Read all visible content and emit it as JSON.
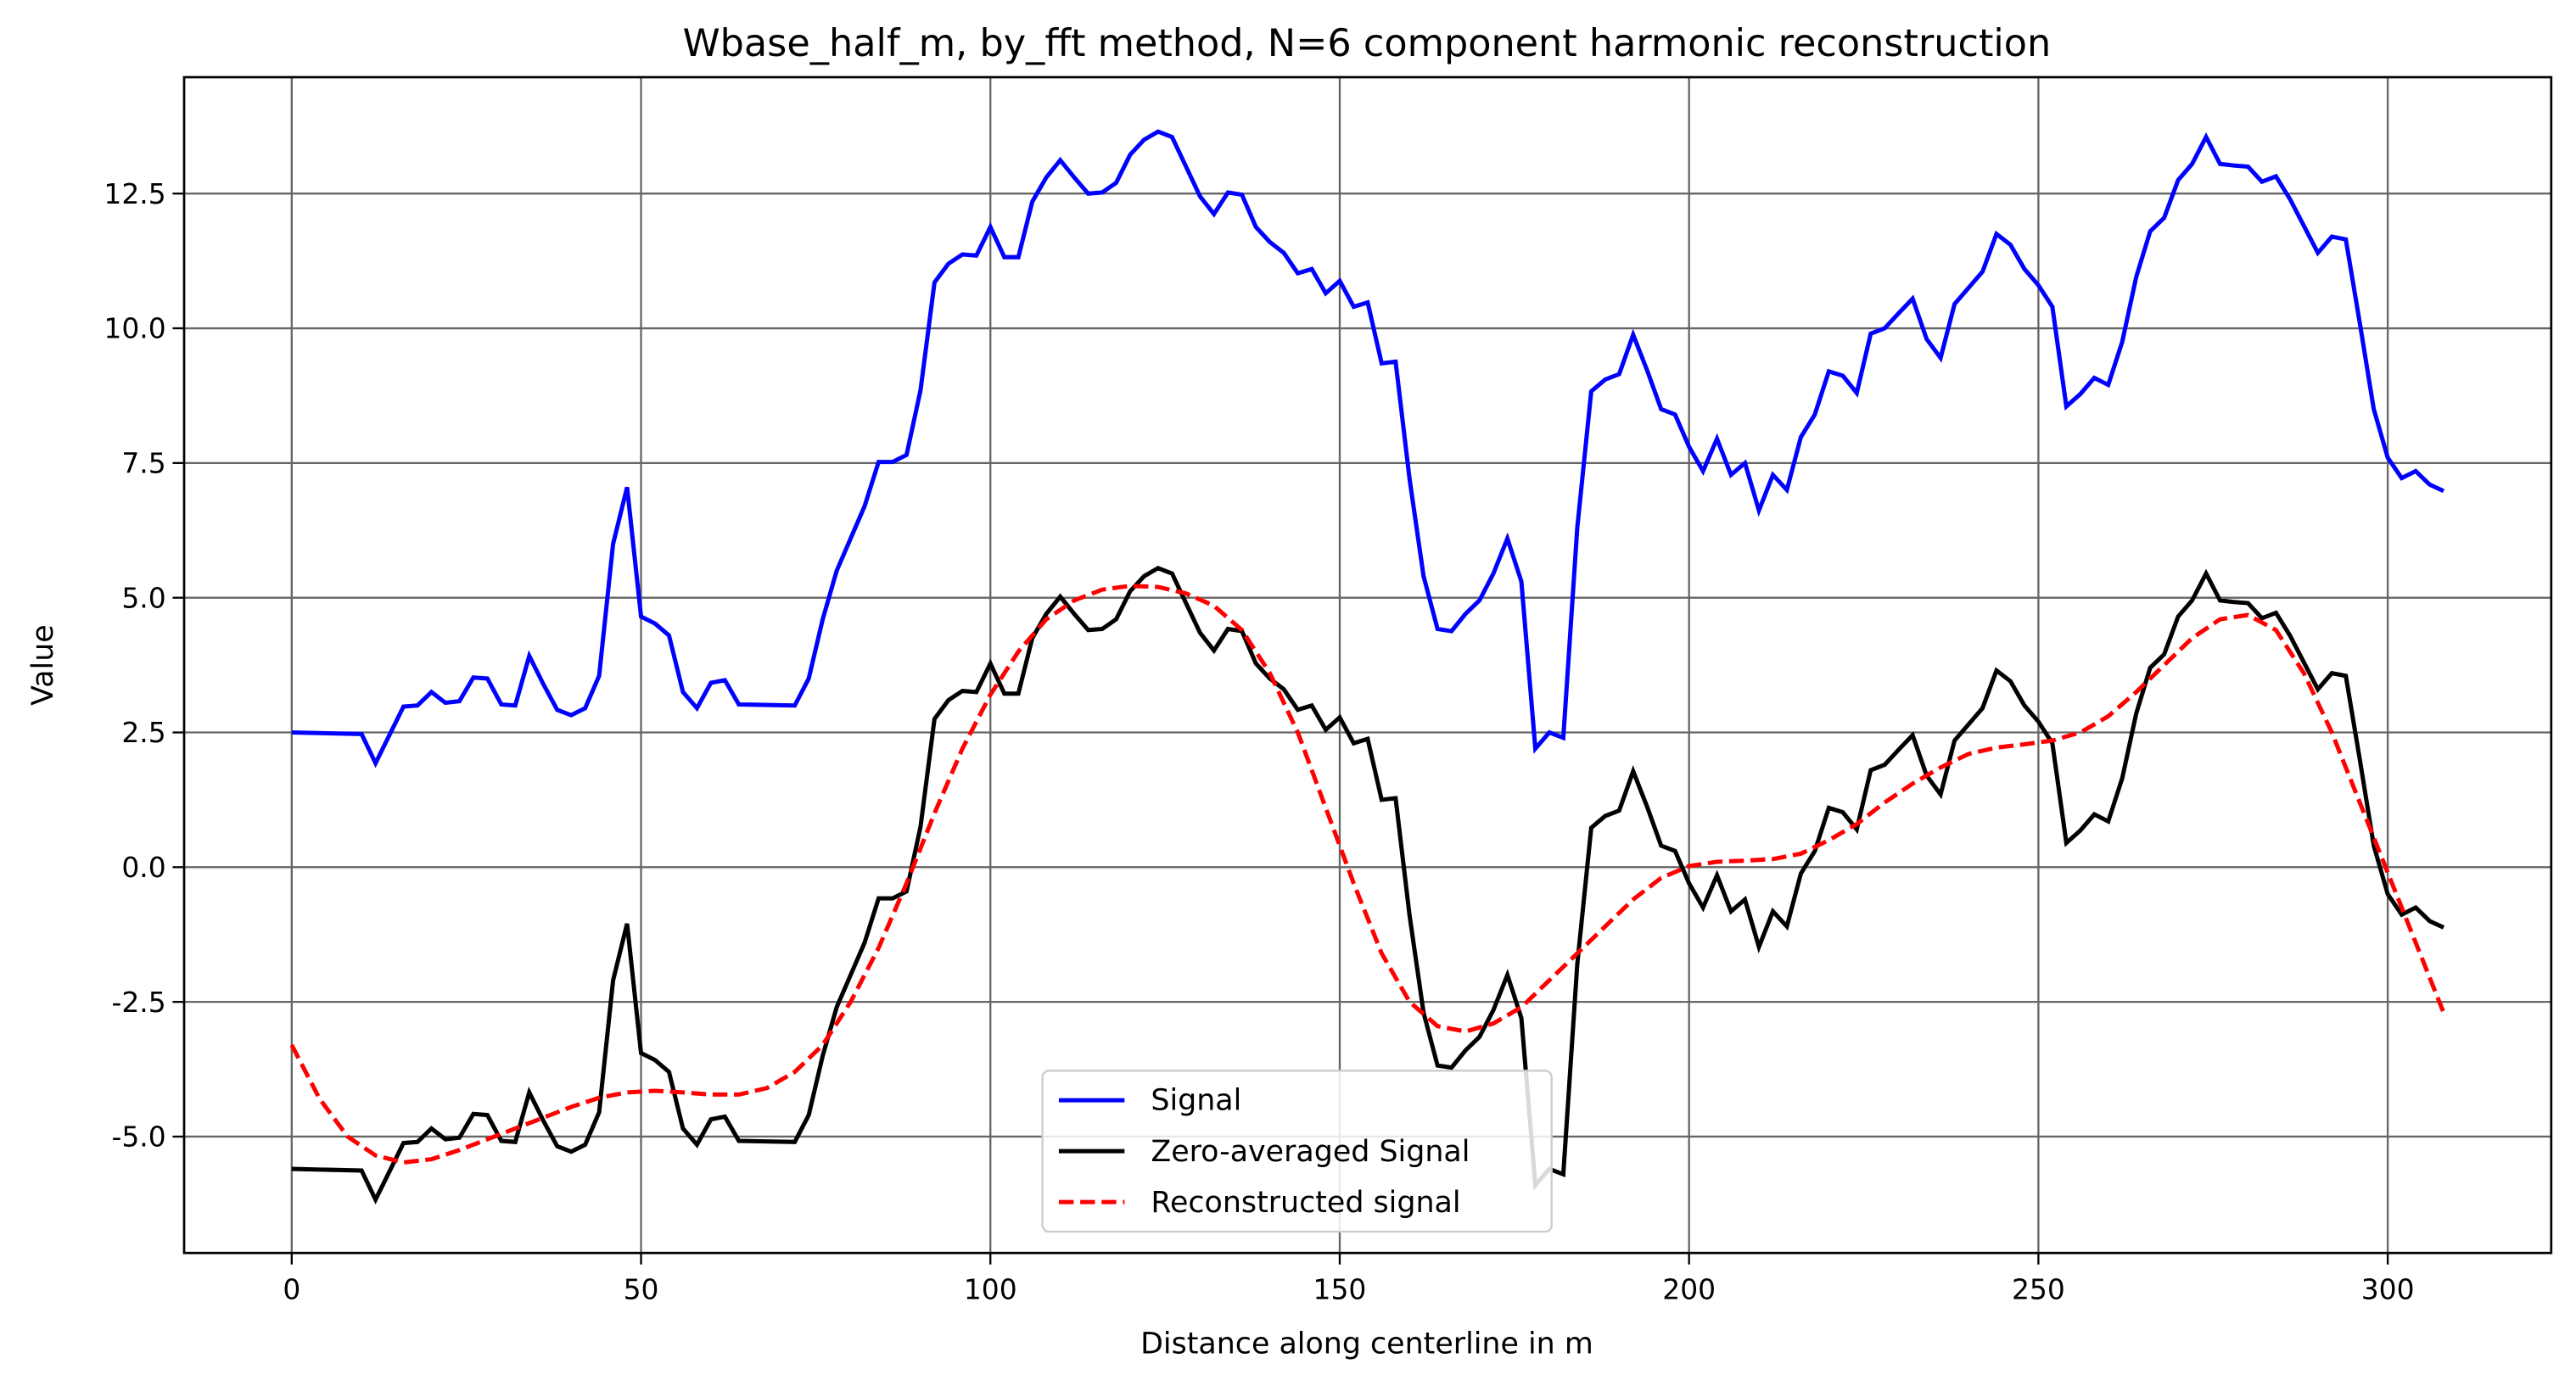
{
  "chart_data": {
    "type": "line",
    "title": "Wbase_half_m, by_fft method, N=6 component harmonic reconstruction",
    "xlabel": "Distance along centerline in m",
    "ylabel": "Value",
    "xlim": [
      -15.4,
      323.4
    ],
    "ylim": [
      -7.16,
      14.66
    ],
    "xticks": [
      0,
      50,
      100,
      150,
      200,
      250,
      300
    ],
    "yticks": [
      {
        "value": -5,
        "label": "-5.0"
      },
      -2.5,
      {
        "value": 0,
        "label": "0.0"
      },
      2.5,
      {
        "value": 5,
        "label": "5.0"
      },
      7.5,
      {
        "value": 10,
        "label": "10.0"
      },
      12.5
    ],
    "grid": true,
    "legend": "lower center",
    "series": [
      {
        "name": "Signal",
        "color": "#0000ff",
        "dash": "solid",
        "x": [
          0,
          10,
          12,
          16,
          18,
          20,
          22,
          24,
          26,
          28,
          30,
          32,
          34,
          36,
          38,
          40,
          42,
          44,
          46,
          48,
          50,
          52,
          54,
          56,
          58,
          60,
          62,
          64,
          72,
          74,
          76,
          78,
          80,
          82,
          84,
          86,
          88,
          90,
          92,
          94,
          96,
          98,
          100,
          102,
          104,
          106,
          108,
          110,
          112,
          114,
          116,
          118,
          120,
          122,
          124,
          126,
          128,
          130,
          132,
          134,
          136,
          138,
          140,
          142,
          144,
          146,
          148,
          150,
          152,
          154,
          156,
          158,
          160,
          162,
          164,
          166,
          168,
          170,
          172,
          174,
          176,
          178,
          180,
          182,
          184,
          186,
          188,
          190,
          192,
          194,
          196,
          198,
          200,
          202,
          204,
          206,
          208,
          210,
          212,
          214,
          216,
          218,
          220,
          222,
          224,
          226,
          228,
          230,
          232,
          234,
          236,
          238,
          240,
          242,
          244,
          246,
          248,
          250,
          252,
          254,
          256,
          258,
          260,
          262,
          264,
          266,
          268,
          270,
          272,
          274,
          276,
          278,
          280,
          282,
          284,
          286,
          288,
          290,
          292,
          294,
          296,
          298,
          300,
          302,
          304,
          306,
          308
        ],
        "values": [
          2.5,
          2.47,
          1.93,
          2.98,
          3.0,
          3.25,
          3.05,
          3.08,
          3.52,
          3.5,
          3.02,
          3.0,
          3.92,
          3.4,
          2.92,
          2.82,
          2.95,
          3.55,
          6.0,
          7.05,
          4.65,
          4.52,
          4.3,
          3.25,
          2.95,
          3.42,
          3.47,
          3.02,
          3.0,
          3.5,
          4.6,
          5.5,
          6.1,
          6.7,
          7.52,
          7.52,
          7.65,
          8.85,
          10.85,
          11.2,
          11.37,
          11.35,
          11.88,
          11.32,
          11.32,
          12.35,
          12.8,
          13.12,
          12.8,
          12.5,
          12.52,
          12.7,
          13.22,
          13.5,
          13.65,
          13.55,
          13.0,
          12.45,
          12.12,
          12.52,
          12.48,
          11.88,
          11.6,
          11.4,
          11.02,
          11.1,
          10.65,
          10.88,
          10.4,
          10.48,
          9.35,
          9.38,
          7.2,
          5.4,
          4.42,
          4.38,
          4.7,
          4.95,
          5.45,
          6.1,
          5.3,
          2.2,
          2.5,
          2.4,
          6.3,
          8.83,
          9.05,
          9.15,
          9.88,
          9.22,
          8.5,
          8.4,
          7.8,
          7.35,
          7.95,
          7.28,
          7.5,
          6.62,
          7.28,
          7.0,
          7.98,
          8.4,
          9.2,
          9.12,
          8.8,
          9.9,
          10.0,
          10.28,
          10.55,
          9.8,
          9.45,
          10.45,
          10.75,
          11.05,
          11.75,
          11.55,
          11.1,
          10.8,
          10.4,
          8.55,
          8.78,
          9.08,
          8.95,
          9.75,
          10.95,
          11.8,
          12.05,
          12.75,
          13.05,
          13.55,
          13.05,
          13.02,
          13.0,
          12.72,
          12.82,
          12.4,
          11.9,
          11.4,
          11.7,
          11.65,
          10.1,
          8.5,
          7.6,
          7.22,
          7.35,
          7.1,
          6.98
        ]
      },
      {
        "name": "Zero-averaged Signal",
        "color": "#000000",
        "dash": "solid",
        "x": [
          0,
          10,
          12,
          16,
          18,
          20,
          22,
          24,
          26,
          28,
          30,
          32,
          34,
          36,
          38,
          40,
          42,
          44,
          46,
          48,
          50,
          52,
          54,
          56,
          58,
          60,
          62,
          64,
          72,
          74,
          76,
          78,
          80,
          82,
          84,
          86,
          88,
          90,
          92,
          94,
          96,
          98,
          100,
          102,
          104,
          106,
          108,
          110,
          112,
          114,
          116,
          118,
          120,
          122,
          124,
          126,
          128,
          130,
          132,
          134,
          136,
          138,
          140,
          142,
          144,
          146,
          148,
          150,
          152,
          154,
          156,
          158,
          160,
          162,
          164,
          166,
          168,
          170,
          172,
          174,
          176,
          178,
          180,
          182,
          184,
          186,
          188,
          190,
          192,
          194,
          196,
          198,
          200,
          202,
          204,
          206,
          208,
          210,
          212,
          214,
          216,
          218,
          220,
          222,
          224,
          226,
          228,
          230,
          232,
          234,
          236,
          238,
          240,
          242,
          244,
          246,
          248,
          250,
          252,
          254,
          256,
          258,
          260,
          262,
          264,
          266,
          268,
          270,
          272,
          274,
          276,
          278,
          280,
          282,
          284,
          286,
          288,
          290,
          292,
          294,
          296,
          298,
          300,
          302,
          304,
          306,
          308
        ],
        "values": [
          -5.6,
          -5.63,
          -6.17,
          -5.12,
          -5.1,
          -4.85,
          -5.05,
          -5.02,
          -4.58,
          -4.6,
          -5.08,
          -5.1,
          -4.18,
          -4.7,
          -5.18,
          -5.28,
          -5.15,
          -4.55,
          -2.1,
          -1.05,
          -3.45,
          -3.58,
          -3.8,
          -4.85,
          -5.15,
          -4.68,
          -4.63,
          -5.08,
          -5.1,
          -4.6,
          -3.5,
          -2.6,
          -2.0,
          -1.4,
          -0.58,
          -0.58,
          -0.45,
          0.75,
          2.75,
          3.1,
          3.27,
          3.25,
          3.78,
          3.22,
          3.22,
          4.25,
          4.7,
          5.02,
          4.7,
          4.4,
          4.42,
          4.6,
          5.12,
          5.4,
          5.55,
          5.45,
          4.9,
          4.35,
          4.02,
          4.42,
          4.38,
          3.78,
          3.5,
          3.3,
          2.92,
          3.0,
          2.55,
          2.78,
          2.3,
          2.38,
          1.25,
          1.28,
          -0.9,
          -2.7,
          -3.68,
          -3.72,
          -3.4,
          -3.15,
          -2.65,
          -2.0,
          -2.8,
          -5.9,
          -5.6,
          -5.7,
          -1.8,
          0.73,
          0.95,
          1.05,
          1.78,
          1.12,
          0.4,
          0.3,
          -0.3,
          -0.75,
          -0.15,
          -0.82,
          -0.6,
          -1.48,
          -0.82,
          -1.1,
          -0.12,
          0.3,
          1.1,
          1.02,
          0.7,
          1.8,
          1.9,
          2.18,
          2.45,
          1.7,
          1.35,
          2.35,
          2.65,
          2.95,
          3.65,
          3.45,
          3.0,
          2.7,
          2.3,
          0.45,
          0.68,
          0.98,
          0.85,
          1.65,
          2.85,
          3.7,
          3.95,
          4.65,
          4.95,
          5.45,
          4.95,
          4.92,
          4.9,
          4.62,
          4.72,
          4.3,
          3.8,
          3.3,
          3.6,
          3.55,
          2.0,
          0.4,
          -0.5,
          -0.88,
          -0.75,
          -1.0,
          -1.12
        ]
      },
      {
        "name": "Reconstructed signal",
        "color": "#ff0000",
        "dash": "dashed",
        "x": [
          0,
          4,
          8,
          12,
          16,
          20,
          24,
          28,
          32,
          36,
          40,
          44,
          48,
          52,
          56,
          60,
          64,
          68,
          72,
          76,
          80,
          84,
          88,
          92,
          96,
          100,
          104,
          108,
          112,
          116,
          120,
          124,
          128,
          132,
          136,
          140,
          144,
          148,
          152,
          156,
          160,
          164,
          168,
          172,
          176,
          180,
          184,
          188,
          192,
          196,
          200,
          204,
          208,
          212,
          216,
          220,
          224,
          228,
          232,
          236,
          240,
          244,
          248,
          252,
          256,
          260,
          264,
          268,
          272,
          276,
          280,
          284,
          288,
          292,
          296,
          300,
          304,
          308
        ],
        "values": [
          -3.3,
          -4.3,
          -5.0,
          -5.35,
          -5.48,
          -5.42,
          -5.25,
          -5.05,
          -4.85,
          -4.65,
          -4.45,
          -4.28,
          -4.18,
          -4.15,
          -4.18,
          -4.22,
          -4.22,
          -4.1,
          -3.8,
          -3.3,
          -2.5,
          -1.5,
          -0.3,
          1.0,
          2.2,
          3.2,
          4.0,
          4.6,
          4.95,
          5.15,
          5.22,
          5.2,
          5.08,
          4.85,
          4.4,
          3.6,
          2.5,
          1.1,
          -0.3,
          -1.6,
          -2.5,
          -2.95,
          -3.05,
          -2.9,
          -2.6,
          -2.1,
          -1.6,
          -1.1,
          -0.6,
          -0.2,
          0.02,
          0.1,
          0.12,
          0.15,
          0.25,
          0.5,
          0.8,
          1.2,
          1.55,
          1.85,
          2.1,
          2.22,
          2.28,
          2.35,
          2.5,
          2.8,
          3.25,
          3.75,
          4.25,
          4.6,
          4.68,
          4.4,
          3.6,
          2.5,
          1.2,
          -0.1,
          -1.4,
          -2.7
        ]
      }
    ]
  }
}
